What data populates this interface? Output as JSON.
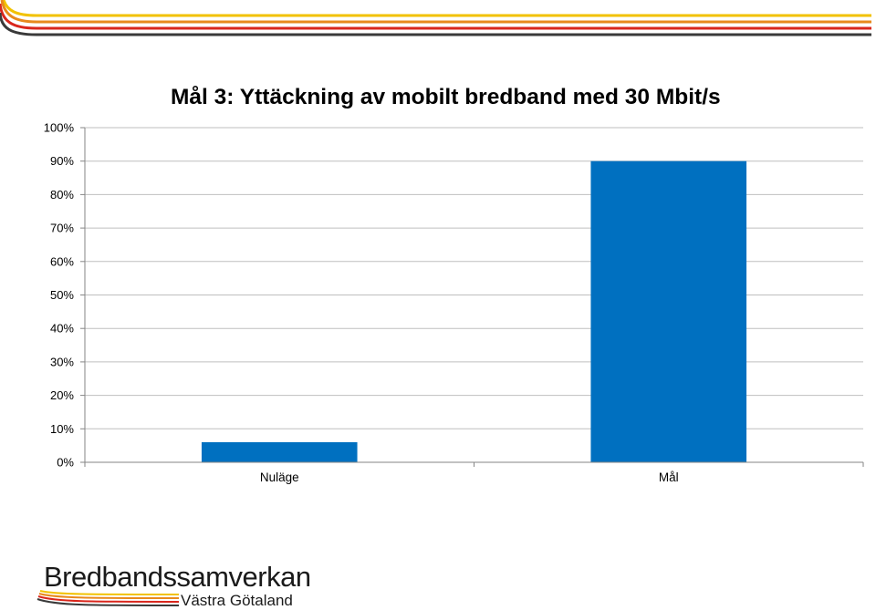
{
  "colors": {
    "bar": "#0070c0",
    "stripe_yellow": "#f2c200",
    "stripe_orange": "#e8891c",
    "stripe_red": "#d9261c",
    "stripe_dark": "#3a3a3a",
    "gridline": "#bfbfbf",
    "axis": "#868686"
  },
  "chart_data": {
    "type": "bar",
    "title": "Mål 3: Yttäckning av mobilt bredband med 30 Mbit/s",
    "categories": [
      "Nuläge",
      "Mål"
    ],
    "values": [
      6,
      90
    ],
    "ylim": [
      0,
      100
    ],
    "yticks": [
      0,
      10,
      20,
      30,
      40,
      50,
      60,
      70,
      80,
      90,
      100
    ],
    "ytick_labels": [
      "0%",
      "10%",
      "20%",
      "30%",
      "40%",
      "50%",
      "60%",
      "70%",
      "80%",
      "90%",
      "100%"
    ],
    "grid": true,
    "legend": "none"
  },
  "logo": {
    "name": "Bredbandssamverkan",
    "region": "Västra Götaland"
  }
}
